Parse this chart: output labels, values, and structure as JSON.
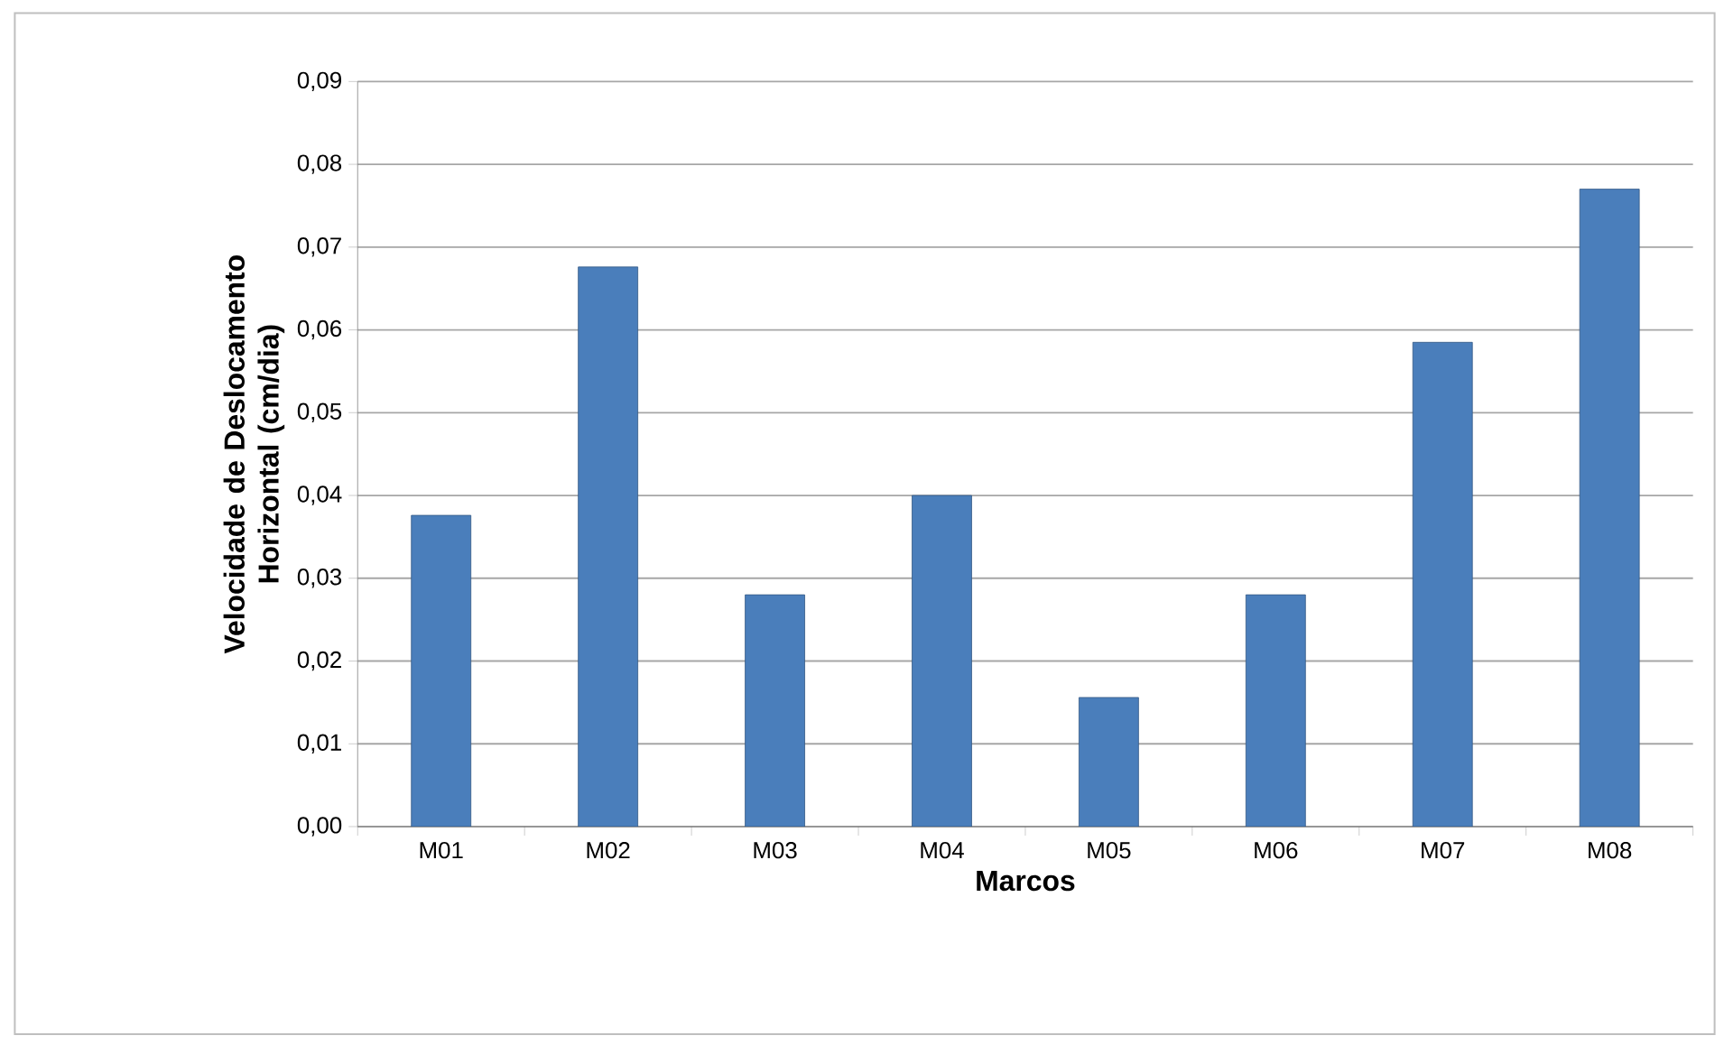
{
  "chart_data": {
    "type": "bar",
    "xlabel": "Marcos",
    "ylabel": "Velocidade de Deslocamento Horizontal (cm/dia)",
    "categories": [
      "M01",
      "M02",
      "M03",
      "M04",
      "M05",
      "M06",
      "M07",
      "M08"
    ],
    "values": [
      0.0376,
      0.0676,
      0.028,
      0.04,
      0.0156,
      0.028,
      0.0585,
      0.077
    ],
    "color": "#4a7ebb",
    "ylim": [
      0,
      0.09
    ],
    "yticks": [
      {
        "value": 0,
        "label": "0,00"
      },
      {
        "value": 0.01,
        "label": "0,01"
      },
      {
        "value": 0.02,
        "label": "0,02"
      },
      {
        "value": 0.03,
        "label": "0,03"
      },
      {
        "value": 0.04,
        "label": "0,04"
      },
      {
        "value": 0.05,
        "label": "0,05"
      },
      {
        "value": 0.06,
        "label": "0,06"
      },
      {
        "value": 0.07,
        "label": "0,07"
      },
      {
        "value": 0.08,
        "label": "0,08"
      },
      {
        "value": 0.09,
        "label": "0,09"
      }
    ],
    "grid": "y"
  }
}
